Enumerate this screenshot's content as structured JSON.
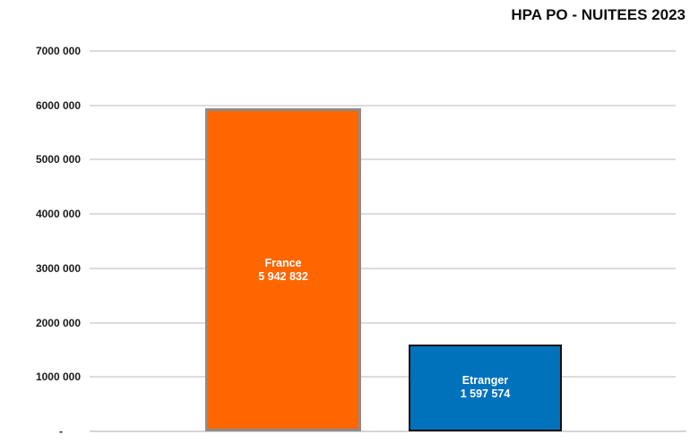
{
  "title": "HPA PO - NUITEES 2023",
  "chart_data": {
    "type": "bar",
    "title": "HPA PO - NUITEES 2023",
    "categories": [
      "France",
      "Etranger"
    ],
    "values": [
      5942832,
      1597574
    ],
    "value_labels": [
      "5 942 832",
      "1 597 574"
    ],
    "bar_colors": [
      "#FF6600",
      "#0072BC"
    ],
    "bar_border_colors": [
      "#8C8C8C",
      "#111111"
    ],
    "bar_label_color": "#FFFFFF",
    "ylim": [
      0,
      7000000
    ],
    "ytick_interval": 1000000,
    "ytick_labels": [
      "7000 000",
      "6000 000",
      "5000 000",
      "4000 000",
      "3000 000",
      "2000 000",
      "1000 000",
      "-"
    ],
    "grid": true,
    "gridline_color": "#DCDCDC",
    "axis_line_color": "#D6D6D6",
    "tick_label_color": "#1A1A1A",
    "title_color": "#0D0D0D",
    "legend": false,
    "background": "#FFFFFF"
  }
}
